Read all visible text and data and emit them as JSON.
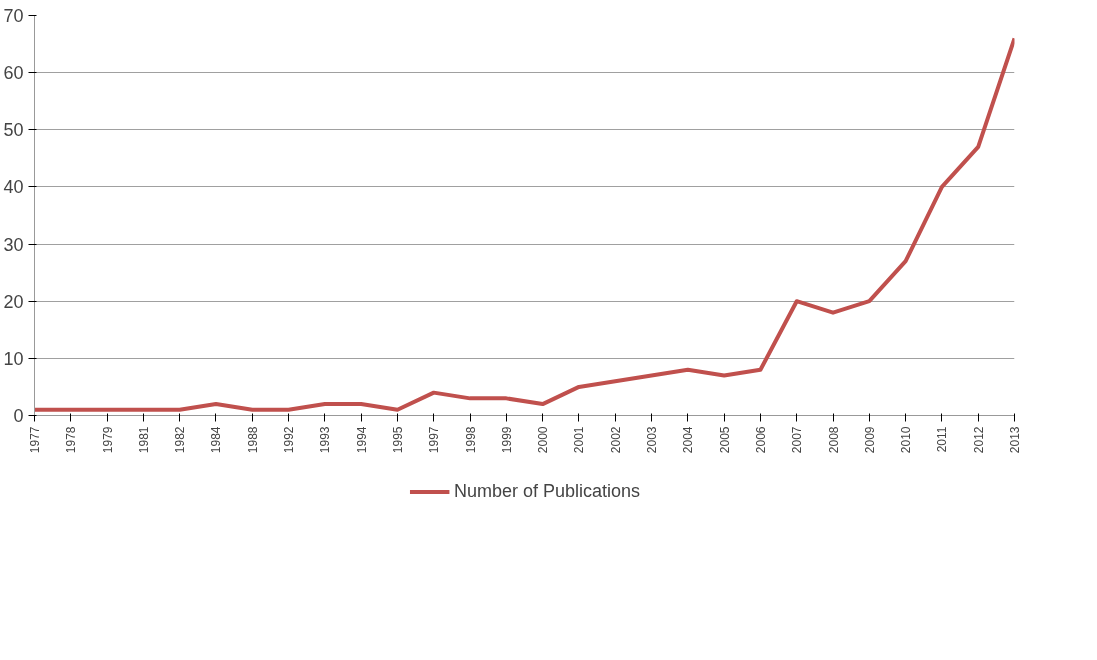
{
  "chart_data": {
    "type": "line",
    "categories": [
      "1977",
      "1978",
      "1979",
      "1981",
      "1982",
      "1984",
      "1988",
      "1992",
      "1993",
      "1994",
      "1995",
      "1997",
      "1998",
      "1999",
      "2000",
      "2001",
      "2002",
      "2003",
      "2004",
      "2005",
      "2006",
      "2007",
      "2008",
      "2009",
      "2010",
      "2011",
      "2012",
      "2013"
    ],
    "series": [
      {
        "name": "Number of Publications",
        "color": "#c0504d",
        "values": [
          1,
          1,
          1,
          1,
          1,
          2,
          1,
          1,
          2,
          2,
          1,
          4,
          3,
          3,
          2,
          5,
          6,
          7,
          8,
          7,
          8,
          20,
          18,
          20,
          27,
          40,
          47,
          66
        ]
      }
    ],
    "ylim": [
      0,
      70
    ],
    "yticks": [
      0,
      10,
      20,
      30,
      40,
      50,
      60,
      70
    ],
    "grid": "y",
    "legend": "bottom",
    "marker": "none",
    "line_style": "solid"
  }
}
